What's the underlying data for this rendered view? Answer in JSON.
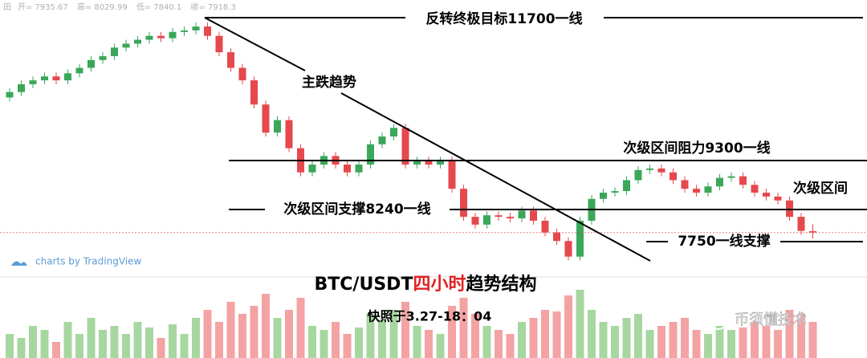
{
  "chart_data": {
    "type": "candlestick",
    "header": {
      "open_label": "开=",
      "high_label": "高=",
      "low_label": "低=",
      "close_label": "收="
    },
    "title_parts": [
      "BTC/USDT",
      "四小时",
      "趋势结构"
    ],
    "subtitle": "快照于3.27-18：04",
    "watermark": "charts by TradingView",
    "brand": "币须懂技术",
    "annotations": {
      "target": "反转终极目标11700一线",
      "trend": "主跌趋势",
      "resistance": "次级区间阻力9300一线",
      "range": "次级区间",
      "support": "次级区间支撑8240一线",
      "support2": "7750一线支撑"
    },
    "up_color": "#3aa75a",
    "down_color": "#e5484d",
    "volume_up_color": "#a7d7a0",
    "volume_down_color": "#f3a3a3",
    "ylim": [
      6310,
      10900
    ],
    "vlim": [
      0,
      100
    ],
    "open": [
      9650,
      9720,
      9820,
      9870,
      9920,
      9870,
      9960,
      10030,
      10130,
      10180,
      10290,
      10340,
      10390,
      10440,
      10410,
      10490,
      10510,
      10560,
      10440,
      10230,
      10030,
      9870,
      9560,
      9200,
      9360,
      9000,
      8690,
      8790,
      8900,
      8790,
      8690,
      8790,
      9050,
      9150,
      9260,
      8790,
      8840,
      8790,
      8840,
      8480,
      8120,
      8020,
      8140,
      8120,
      8100,
      8200,
      8070,
      7920,
      7810,
      7610,
      8070,
      8350,
      8430,
      8450,
      8590,
      8720,
      8740,
      8690,
      8590,
      8480,
      8430,
      8510,
      8620,
      8640,
      8530,
      8430,
      8380,
      8330,
      8120,
      7935.67
    ],
    "high": [
      9770,
      9870,
      9920,
      9970,
      9970,
      10010,
      10080,
      10180,
      10230,
      10340,
      10390,
      10440,
      10490,
      10490,
      10540,
      10560,
      10610,
      10610,
      10490,
      10280,
      10080,
      9920,
      9610,
      9410,
      9410,
      9050,
      8840,
      8950,
      8950,
      8840,
      8840,
      9100,
      9200,
      9310,
      9310,
      8890,
      8890,
      8890,
      8890,
      8530,
      8170,
      8190,
      8190,
      8170,
      8250,
      8250,
      8120,
      7970,
      7860,
      8120,
      8400,
      8480,
      8500,
      8640,
      8770,
      8790,
      8790,
      8740,
      8640,
      8530,
      8560,
      8670,
      8690,
      8690,
      8580,
      8480,
      8430,
      8380,
      8170,
      8029.99
    ],
    "low": [
      9600,
      9670,
      9770,
      9820,
      9820,
      9820,
      9910,
      9980,
      10080,
      10130,
      10240,
      10290,
      10340,
      10360,
      10360,
      10440,
      10460,
      10390,
      10180,
      9980,
      9820,
      9510,
      9150,
      9150,
      8950,
      8640,
      8640,
      8740,
      8740,
      8640,
      8640,
      8740,
      9000,
      9100,
      8740,
      8740,
      8740,
      8740,
      8430,
      8070,
      7970,
      7970,
      8070,
      8050,
      8050,
      8020,
      7870,
      7760,
      7560,
      7560,
      8020,
      8300,
      8380,
      8400,
      8540,
      8670,
      8640,
      8540,
      8430,
      8380,
      8380,
      8460,
      8570,
      8480,
      8380,
      8330,
      8280,
      8070,
      7890,
      7840.1
    ],
    "close": [
      9720,
      9820,
      9870,
      9920,
      9870,
      9960,
      10030,
      10130,
      10180,
      10290,
      10340,
      10390,
      10440,
      10410,
      10490,
      10510,
      10560,
      10440,
      10230,
      10030,
      9870,
      9560,
      9200,
      9360,
      9000,
      8690,
      8790,
      8900,
      8790,
      8690,
      8790,
      9050,
      9150,
      9260,
      8790,
      8840,
      8790,
      8840,
      8480,
      8120,
      8020,
      8140,
      8120,
      8100,
      8200,
      8070,
      7920,
      7810,
      7610,
      8070,
      8350,
      8430,
      8450,
      8590,
      8720,
      8740,
      8690,
      8590,
      8480,
      8430,
      8510,
      8620,
      8640,
      8530,
      8430,
      8380,
      8330,
      8120,
      7940,
      7918.3
    ],
    "volume": [
      30,
      25,
      40,
      35,
      20,
      45,
      30,
      50,
      35,
      40,
      30,
      45,
      38,
      25,
      42,
      30,
      50,
      60,
      45,
      70,
      55,
      65,
      80,
      50,
      60,
      75,
      40,
      35,
      45,
      30,
      38,
      55,
      48,
      60,
      70,
      40,
      35,
      30,
      65,
      75,
      55,
      40,
      35,
      30,
      45,
      50,
      60,
      58,
      78,
      85,
      60,
      45,
      40,
      50,
      55,
      35,
      40,
      45,
      50,
      35,
      30,
      40,
      35,
      38,
      45,
      40,
      35,
      60,
      55,
      45
    ]
  }
}
